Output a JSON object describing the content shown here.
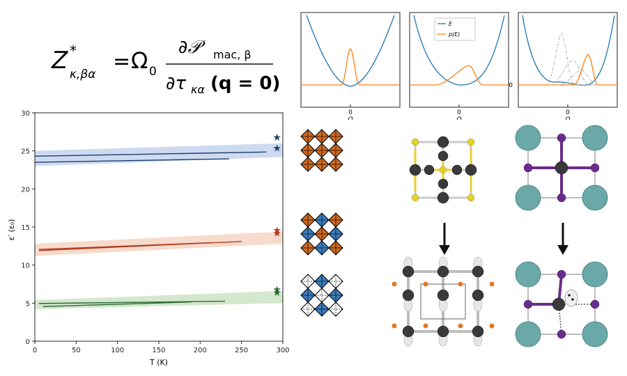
{
  "formula": {
    "lhs": "Z",
    "lhs_sup": "*",
    "lhs_sub": "κ,βα",
    "equals": "=",
    "prefactor": "Ω",
    "prefactor_sub": "0",
    "numerator": "∂𝒫",
    "numerator_sub": "mac, β",
    "denominator": "∂τ",
    "denominator_sub": "κα",
    "denominator_arg": "(q = 0)"
  },
  "top_panels": {
    "ylabel_tick": "0",
    "xlabel": "Q",
    "xtick": "0",
    "legend": [
      {
        "label": "E",
        "color": "#1f77b4"
      },
      {
        "label": "p(E)",
        "color": "#ff7f0e"
      }
    ]
  },
  "chart_data": {
    "type": "line",
    "xlabel": "T (K)",
    "ylabel": "ε′ (ε₀)",
    "xlim": [
      0,
      300
    ],
    "ylim": [
      0,
      30
    ],
    "xticks": [
      0,
      50,
      100,
      150,
      200,
      250,
      300
    ],
    "yticks": [
      0,
      5,
      10,
      15,
      20,
      25,
      30
    ],
    "series": [
      {
        "color": "#1c3f6e",
        "x": [
          0,
          280
        ],
        "y": [
          24.3,
          24.85
        ]
      },
      {
        "color": "#1c3f6e",
        "x": [
          0,
          235
        ],
        "y": [
          23.5,
          23.95
        ]
      },
      {
        "color": "#b23a1e",
        "x": [
          5,
          250
        ],
        "y": [
          11.9,
          13.1
        ]
      },
      {
        "color": "#b23a1e",
        "x": [
          5,
          215
        ],
        "y": [
          12.05,
          12.95
        ]
      },
      {
        "color": "#2e6b35",
        "x": [
          5,
          230
        ],
        "y": [
          4.95,
          5.25
        ]
      },
      {
        "color": "#2e6b35",
        "x": [
          10,
          190
        ],
        "y": [
          4.55,
          5.15
        ]
      }
    ],
    "bands": [
      {
        "color": "#c8d6ee",
        "x": [
          0,
          300
        ],
        "lower": [
          23.0,
          24.2
        ],
        "upper": [
          25.0,
          26.0
        ]
      },
      {
        "color": "#f6d7c6",
        "x": [
          0,
          300
        ],
        "lower": [
          11.2,
          12.8
        ],
        "upper": [
          12.8,
          14.4
        ]
      },
      {
        "color": "#cfe5c8",
        "x": [
          0,
          300
        ],
        "lower": [
          4.2,
          5.0
        ],
        "upper": [
          5.4,
          6.6
        ]
      }
    ],
    "stars": [
      {
        "color": "#1c3f6e",
        "x": 293,
        "y": 26.8
      },
      {
        "color": "#1c3f6e",
        "x": 293,
        "y": 25.4
      },
      {
        "color": "#b23a1e",
        "x": 293,
        "y": 14.6
      },
      {
        "color": "#b23a1e",
        "x": 293,
        "y": 14.2
      },
      {
        "color": "#2e6b35",
        "x": 293,
        "y": 6.8
      },
      {
        "color": "#2e6b35",
        "x": 293,
        "y": 6.4
      }
    ]
  },
  "octahedra_grids": {
    "colors": {
      "orange": "#d2691e",
      "blue": "#3a7cc0",
      "white": "#ffffff"
    },
    "grids": [
      [
        "orange",
        "orange",
        "orange",
        "orange",
        "orange",
        "orange",
        "orange",
        "orange",
        "orange"
      ],
      [
        "orange",
        "blue",
        "orange",
        "blue",
        "orange",
        "blue",
        "orange",
        "blue",
        "orange"
      ],
      [
        "white",
        "blue",
        "white",
        "blue",
        "white",
        "blue",
        "white",
        "blue",
        "white"
      ]
    ]
  }
}
